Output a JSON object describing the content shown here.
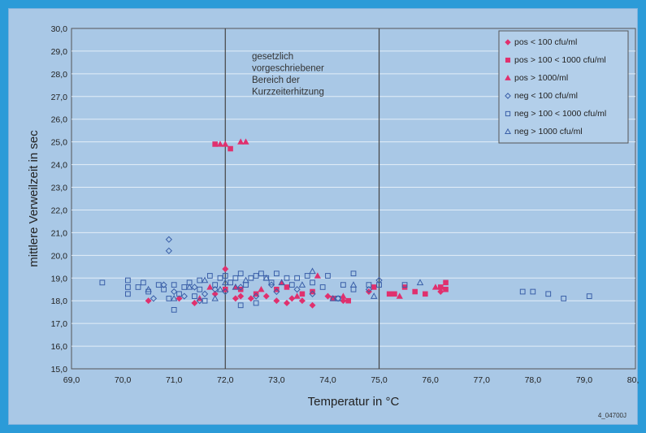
{
  "chart_data": {
    "type": "scatter",
    "xlabel": "Temperatur in °C",
    "ylabel": "mittlere Verweilzeit in sec",
    "xlim": [
      69.0,
      80.0
    ],
    "ylim": [
      15.0,
      30.0
    ],
    "x_ticks": [
      "69,0",
      "70,0",
      "71,0",
      "72,0",
      "73,0",
      "74,0",
      "75,0",
      "76,0",
      "77,0",
      "78,0",
      "79,0",
      "80,0"
    ],
    "y_ticks": [
      "15,0",
      "16,0",
      "17,0",
      "18,0",
      "19,0",
      "20,0",
      "21,0",
      "22,0",
      "23,0",
      "24,0",
      "25,0",
      "26,0",
      "27,0",
      "28,0",
      "29,0",
      "30,0"
    ],
    "grid": true,
    "vertical_lines": [
      72.0,
      75.0
    ],
    "annotation": [
      "gesetzlich",
      "vorgeschriebener",
      "Bereich der",
      "Kurzzeiterhitzung"
    ],
    "legend_position": "top-right",
    "footer_code": "4_04700J",
    "series": [
      {
        "name": "pos < 100 cfu/ml",
        "marker": "diamond",
        "filled": true,
        "color": "#e0306e",
        "points": [
          [
            70.5,
            18.0
          ],
          [
            71.1,
            18.1
          ],
          [
            71.4,
            17.9
          ],
          [
            71.8,
            18.3
          ],
          [
            72.0,
            19.4
          ],
          [
            72.2,
            18.1
          ],
          [
            72.5,
            18.1
          ],
          [
            72.8,
            18.2
          ],
          [
            73.0,
            18.0
          ],
          [
            73.2,
            17.9
          ],
          [
            73.3,
            18.1
          ],
          [
            73.5,
            18.0
          ],
          [
            73.7,
            17.8
          ],
          [
            74.0,
            18.2
          ],
          [
            74.3,
            18.0
          ],
          [
            74.8,
            18.4
          ],
          [
            76.2,
            18.4
          ],
          [
            72.3,
            18.2
          ]
        ]
      },
      {
        "name": "pos > 100 < 1000 cfu/ml",
        "marker": "square",
        "filled": true,
        "color": "#e0306e",
        "points": [
          [
            71.8,
            24.9
          ],
          [
            72.1,
            24.7
          ],
          [
            72.0,
            18.5
          ],
          [
            72.3,
            18.5
          ],
          [
            72.6,
            18.3
          ],
          [
            73.0,
            18.5
          ],
          [
            73.2,
            18.6
          ],
          [
            73.5,
            18.3
          ],
          [
            73.7,
            18.4
          ],
          [
            74.1,
            18.1
          ],
          [
            74.4,
            18.0
          ],
          [
            74.9,
            18.6
          ],
          [
            75.2,
            18.3
          ],
          [
            75.3,
            18.3
          ],
          [
            75.5,
            18.6
          ],
          [
            75.7,
            18.4
          ],
          [
            75.9,
            18.3
          ],
          [
            76.2,
            18.6
          ],
          [
            76.3,
            18.8
          ],
          [
            76.3,
            18.5
          ]
        ]
      },
      {
        "name": "pos > 1000/ml",
        "marker": "triangle",
        "filled": true,
        "color": "#e0306e",
        "points": [
          [
            71.9,
            24.9
          ],
          [
            72.0,
            24.9
          ],
          [
            72.3,
            25.0
          ],
          [
            72.4,
            25.0
          ],
          [
            71.7,
            18.6
          ],
          [
            72.2,
            18.6
          ],
          [
            72.7,
            18.5
          ],
          [
            73.1,
            18.8
          ],
          [
            73.4,
            18.2
          ],
          [
            73.8,
            19.1
          ],
          [
            74.3,
            18.2
          ],
          [
            75.4,
            18.2
          ],
          [
            76.1,
            18.6
          ],
          [
            71.5,
            18.1
          ]
        ]
      },
      {
        "name": "neg < 100 cfu/ml",
        "marker": "diamond",
        "filled": false,
        "color": "#3a5fa8",
        "points": [
          [
            70.9,
            20.7
          ],
          [
            70.9,
            20.2
          ],
          [
            70.6,
            18.1
          ],
          [
            70.8,
            18.7
          ],
          [
            71.0,
            18.4
          ],
          [
            71.2,
            18.2
          ],
          [
            71.4,
            18.6
          ],
          [
            71.6,
            18.3
          ],
          [
            71.8,
            18.5
          ],
          [
            72.0,
            18.4
          ],
          [
            72.3,
            18.6
          ],
          [
            72.6,
            18.2
          ],
          [
            73.0,
            18.4
          ],
          [
            73.4,
            18.5
          ],
          [
            73.7,
            18.3
          ],
          [
            74.2,
            18.1
          ],
          [
            74.8,
            18.5
          ],
          [
            75.0,
            18.9
          ],
          [
            71.5,
            18.0
          ],
          [
            72.9,
            18.7
          ]
        ]
      },
      {
        "name": "neg > 100 < 1000 cfu/ml",
        "marker": "square",
        "filled": false,
        "color": "#3a5fa8",
        "points": [
          [
            69.6,
            18.8
          ],
          [
            70.1,
            18.9
          ],
          [
            70.1,
            18.6
          ],
          [
            70.1,
            18.3
          ],
          [
            70.3,
            18.6
          ],
          [
            70.4,
            18.8
          ],
          [
            70.5,
            18.4
          ],
          [
            70.7,
            18.7
          ],
          [
            70.8,
            18.5
          ],
          [
            70.9,
            18.1
          ],
          [
            71.0,
            18.7
          ],
          [
            71.0,
            17.6
          ],
          [
            71.1,
            18.3
          ],
          [
            71.2,
            18.6
          ],
          [
            71.3,
            18.8
          ],
          [
            71.4,
            18.2
          ],
          [
            71.5,
            18.5
          ],
          [
            71.5,
            18.9
          ],
          [
            71.6,
            18.0
          ],
          [
            71.7,
            19.1
          ],
          [
            71.8,
            18.7
          ],
          [
            71.9,
            19.0
          ],
          [
            72.0,
            19.1
          ],
          [
            72.1,
            18.8
          ],
          [
            72.2,
            19.0
          ],
          [
            72.3,
            19.2
          ],
          [
            72.3,
            17.8
          ],
          [
            72.4,
            18.7
          ],
          [
            72.5,
            19.0
          ],
          [
            72.6,
            19.1
          ],
          [
            72.6,
            17.9
          ],
          [
            72.7,
            19.2
          ],
          [
            72.8,
            19.0
          ],
          [
            72.9,
            18.8
          ],
          [
            73.0,
            19.2
          ],
          [
            73.2,
            19.0
          ],
          [
            73.3,
            18.7
          ],
          [
            73.4,
            19.0
          ],
          [
            73.6,
            19.1
          ],
          [
            73.7,
            18.8
          ],
          [
            73.9,
            18.6
          ],
          [
            74.0,
            19.1
          ],
          [
            74.2,
            18.1
          ],
          [
            74.3,
            18.7
          ],
          [
            74.5,
            19.2
          ],
          [
            74.5,
            18.5
          ],
          [
            74.8,
            18.7
          ],
          [
            75.0,
            18.7
          ],
          [
            75.5,
            18.7
          ],
          [
            77.8,
            18.4
          ],
          [
            78.0,
            18.4
          ],
          [
            78.3,
            18.3
          ],
          [
            78.6,
            18.1
          ],
          [
            79.1,
            18.2
          ]
        ]
      },
      {
        "name": "neg > 1000 cfu/ml",
        "marker": "triangle",
        "filled": false,
        "color": "#3a5fa8",
        "points": [
          [
            71.0,
            18.1
          ],
          [
            71.3,
            18.6
          ],
          [
            71.6,
            18.9
          ],
          [
            71.8,
            18.1
          ],
          [
            72.0,
            18.8
          ],
          [
            72.2,
            18.6
          ],
          [
            72.4,
            18.9
          ],
          [
            72.8,
            19.0
          ],
          [
            73.1,
            18.8
          ],
          [
            73.5,
            18.7
          ],
          [
            73.7,
            19.3
          ],
          [
            74.1,
            18.1
          ],
          [
            74.5,
            18.7
          ],
          [
            74.9,
            18.2
          ],
          [
            75.8,
            18.8
          ],
          [
            71.9,
            18.5
          ],
          [
            70.5,
            18.5
          ]
        ]
      }
    ]
  }
}
